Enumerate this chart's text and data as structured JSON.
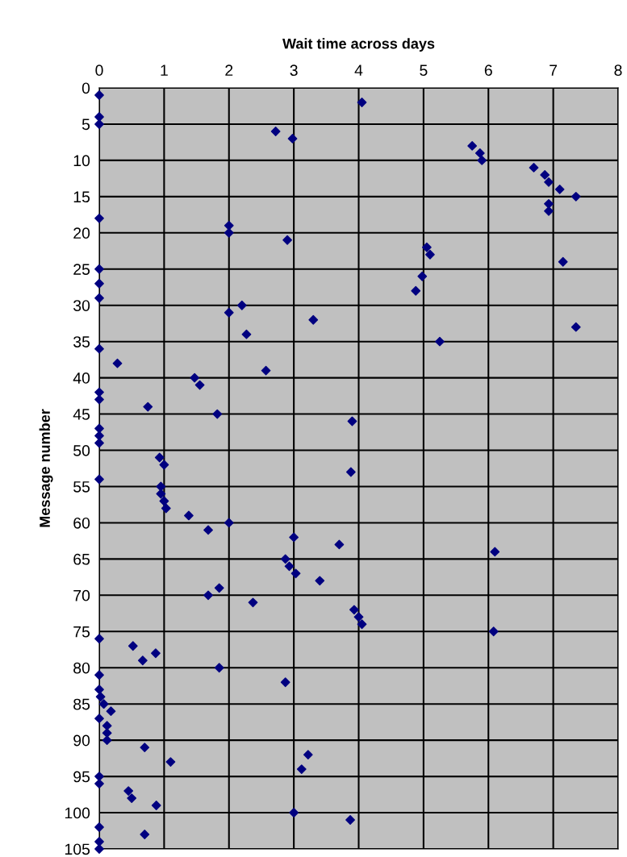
{
  "chart_data": {
    "type": "scatter",
    "xlabel": "Wait time across days",
    "ylabel": "Message number",
    "x": [
      0,
      4.05,
      0,
      0,
      2.72,
      2.98,
      5.75,
      5.87,
      5.9,
      6.7,
      6.87,
      6.93,
      7.1,
      7.35,
      6.93,
      6.93,
      0,
      2.0,
      2.0,
      2.9,
      5.05,
      5.1,
      7.15,
      0,
      4.98,
      0,
      4.88,
      0,
      2.2,
      2.0,
      3.3,
      7.35,
      2.27,
      5.25,
      0,
      0.28,
      2.57,
      1.47,
      1.55,
      0,
      0,
      0.75,
      1.82,
      3.9,
      0,
      0,
      0,
      0.93,
      1.0,
      3.88,
      0,
      0.95,
      0.95,
      1.0,
      1.03,
      1.38,
      2.0,
      1.68,
      3.0,
      3.7,
      6.1,
      2.87,
      2.93,
      3.03,
      3.4,
      1.85,
      1.68,
      2.37,
      3.93,
      4.0,
      4.05,
      6.08,
      0,
      0.52,
      0.87,
      0.67,
      1.85,
      0,
      2.87,
      0,
      0.02,
      0.07,
      0.18,
      0,
      0.12,
      0.12,
      0.12,
      0.7,
      3.22,
      1.1,
      3.12,
      0,
      0,
      0.45,
      0.5,
      0.88,
      3.0,
      3.87,
      0,
      0.7,
      0,
      0
    ],
    "values": [
      1,
      2,
      4,
      5,
      6,
      7,
      8,
      9,
      10,
      11,
      12,
      13,
      14,
      15,
      16,
      17,
      18,
      19,
      20,
      21,
      22,
      23,
      24,
      25,
      26,
      27,
      28,
      29,
      30,
      31,
      32,
      33,
      34,
      35,
      36,
      38,
      39,
      40,
      41,
      42,
      43,
      44,
      45,
      46,
      47,
      48,
      49,
      51,
      52,
      53,
      54,
      55,
      56,
      57,
      58,
      59,
      60,
      61,
      62,
      63,
      64,
      65,
      66,
      67,
      68,
      69,
      70,
      71,
      72,
      73,
      74,
      75,
      76,
      77,
      78,
      79,
      80,
      81,
      82,
      83,
      84,
      85,
      86,
      87,
      88,
      89,
      90,
      91,
      92,
      93,
      94,
      95,
      96,
      97,
      98,
      99,
      100,
      101,
      102,
      103,
      104,
      105
    ],
    "color": "#000080",
    "marker": "diamond",
    "xlim": [
      0,
      8
    ],
    "xticks": [
      0,
      1,
      2,
      3,
      4,
      5,
      6,
      7,
      8
    ],
    "ylim": [
      105,
      0
    ],
    "yticks": [
      0,
      5,
      10,
      15,
      20,
      25,
      30,
      35,
      40,
      45,
      50,
      55,
      60,
      65,
      70,
      75,
      80,
      85,
      90,
      95,
      100,
      105
    ],
    "grid": true
  }
}
